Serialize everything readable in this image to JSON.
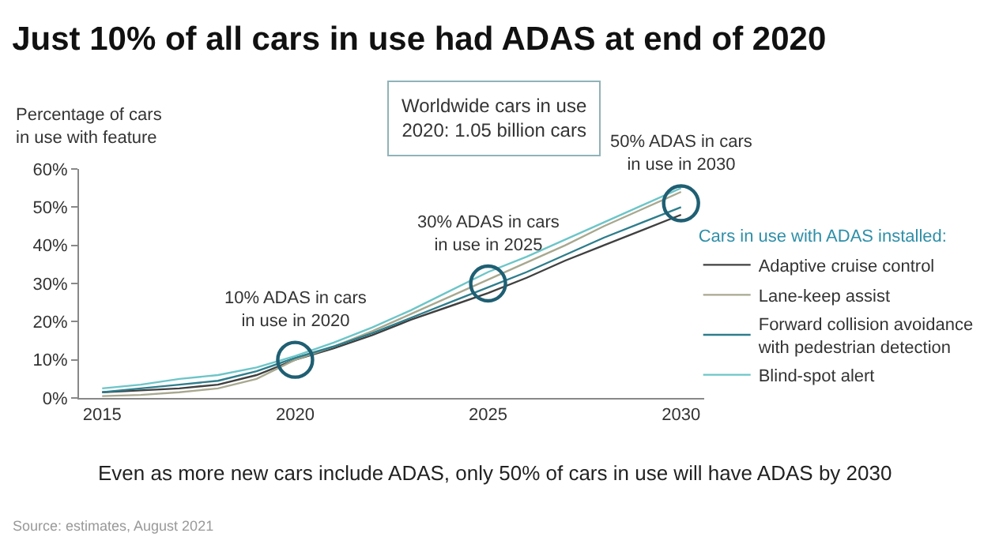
{
  "chart_data": {
    "type": "line",
    "title": "Just 10% of all cars in use had ADAS at end of 2020",
    "ylabel": "Percentage of cars in use with feature",
    "legend_title": "Cars in use with ADAS installed:",
    "x": [
      2015,
      2016,
      2017,
      2018,
      2019,
      2020,
      2021,
      2022,
      2023,
      2024,
      2025,
      2026,
      2027,
      2028,
      2029,
      2030
    ],
    "xlim": [
      2014.4,
      2030.6
    ],
    "xticks": [
      2015,
      2020,
      2025,
      2030
    ],
    "ylim": [
      0,
      60
    ],
    "yticks": [
      {
        "value": 0,
        "label": "0%"
      },
      {
        "value": 10,
        "label": "10%"
      },
      {
        "value": 20,
        "label": "20%"
      },
      {
        "value": 30,
        "label": "30%"
      },
      {
        "value": 40,
        "label": "40%"
      },
      {
        "value": 50,
        "label": "50%"
      },
      {
        "value": 60,
        "label": "60%"
      }
    ],
    "series": [
      {
        "name": "Adaptive cruise control",
        "color": "#404040",
        "values": [
          1.5,
          2,
          2.5,
          3.5,
          6,
          10,
          13,
          16.5,
          20.5,
          24,
          27.5,
          31.5,
          36,
          40,
          44,
          48
        ]
      },
      {
        "name": "Lane-keep assist",
        "color": "#a8a890",
        "values": [
          0.5,
          0.8,
          1.5,
          2.5,
          5,
          10,
          13.5,
          17.5,
          22,
          26.5,
          31,
          35.5,
          40,
          45,
          49.5,
          54
        ]
      },
      {
        "name": "Forward collision avoidance with pedestrian detection",
        "color": "#2e7d8c",
        "values": [
          1.5,
          2.5,
          3.5,
          4.5,
          7,
          10.5,
          13.5,
          17,
          21,
          25,
          29,
          33,
          37.5,
          42,
          46,
          50
        ]
      },
      {
        "name": "Blind-spot alert",
        "color": "#6cc5c8",
        "values": [
          2.5,
          3.5,
          5,
          6,
          8,
          11,
          14.5,
          18.5,
          23,
          28,
          33,
          37,
          41.5,
          46,
          50.5,
          55
        ]
      }
    ],
    "annotations": [
      "Worldwide cars in use 2020: 1.05 billion cars",
      {
        "text": "10% ADAS in cars in use in 2020",
        "x": 2020,
        "y": 10
      },
      {
        "text": "30% ADAS in cars in use in 2025",
        "x": 2025,
        "y": 30
      },
      {
        "text": "50% ADAS in cars in use in 2030",
        "x": 2030,
        "y": 51
      },
      "Even as more new cars include ADAS, only 50% of cars in use will have ADAS by 2030",
      "Source: estimates, August 2021"
    ],
    "grid": false,
    "legend": "right",
    "marker": "none",
    "line_style": "solid"
  }
}
